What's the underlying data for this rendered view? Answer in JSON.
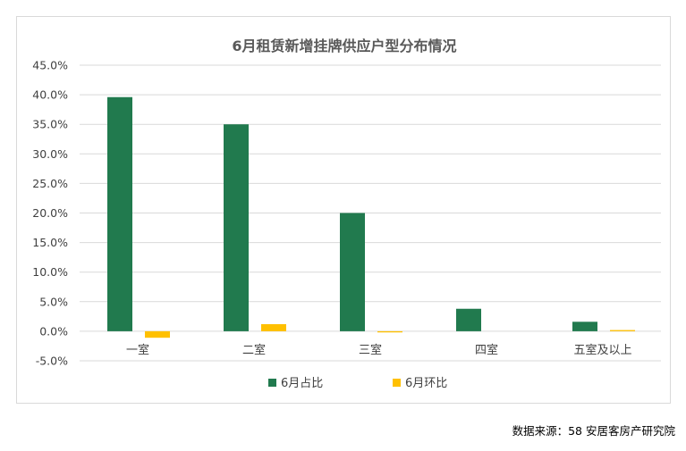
{
  "chart_data": {
    "type": "bar",
    "title": "6月租赁新增挂牌供应户型分布情况",
    "categories": [
      "一室",
      "二室",
      "三室",
      "四室",
      "五室及以上"
    ],
    "series": [
      {
        "name": "6月占比",
        "color": "#217a4e",
        "values": [
          39.6,
          35.0,
          20.0,
          3.8,
          1.6
        ]
      },
      {
        "name": "6月环比",
        "color": "#ffc000",
        "values": [
          -1.1,
          1.2,
          -0.2,
          0.0,
          0.2
        ]
      }
    ],
    "ylim": [
      -5,
      45
    ],
    "y_ticks": [
      "45.0%",
      "40.0%",
      "35.0%",
      "30.0%",
      "25.0%",
      "20.0%",
      "15.0%",
      "10.0%",
      "5.0%",
      "0.0%",
      "-5.0%"
    ],
    "y_tick_values": [
      45,
      40,
      35,
      30,
      25,
      20,
      15,
      10,
      5,
      0,
      -5
    ],
    "grid": true,
    "legend_position": "bottom"
  },
  "source_note": "数据来源：58 安居客房产研究院"
}
